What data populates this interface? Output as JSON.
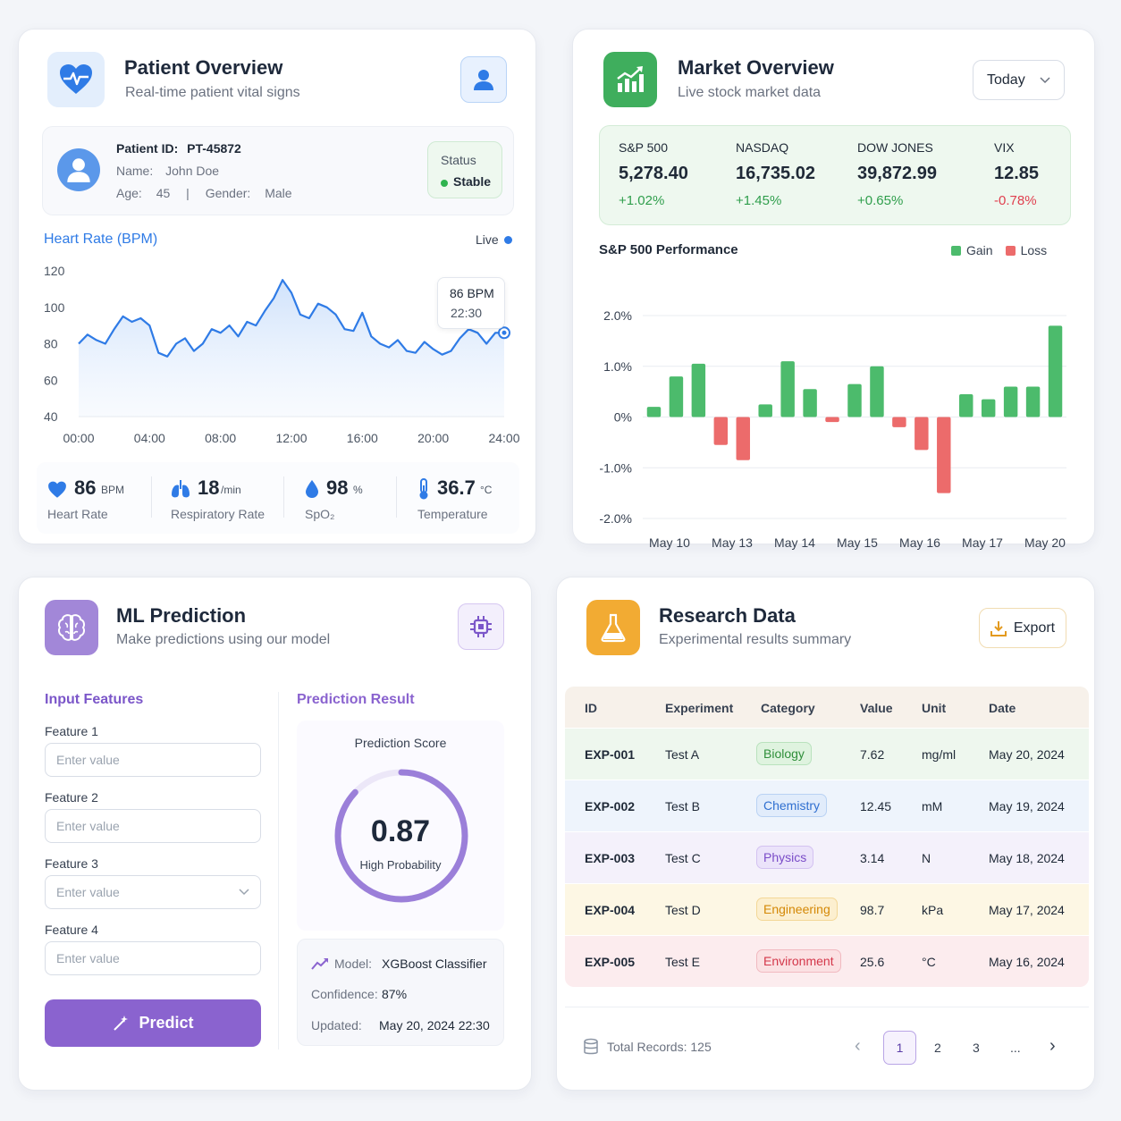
{
  "patient": {
    "title": "Patient Overview",
    "subtitle": "Real-time patient vital signs",
    "id_label": "Patient ID:",
    "id_value": "PT-45872",
    "name_label": "Name:",
    "name_value": "John Doe",
    "age_label": "Age:",
    "age_value": "45",
    "separator": "|",
    "gender_label": "Gender:",
    "gender_value": "Male",
    "status_label": "Status",
    "status_value": "Stable",
    "chart_title": "Heart Rate (BPM)",
    "live_label": "Live",
    "tooltip_value": "86 BPM",
    "tooltip_time": "22:30",
    "vitals": [
      {
        "value": "86",
        "unit": "BPM",
        "label": "Heart Rate",
        "icon": "heart-icon"
      },
      {
        "value": "18",
        "unit": "/min",
        "label": "Respiratory Rate",
        "icon": "lungs-icon"
      },
      {
        "value": "98",
        "unit": "%",
        "label": "SpO₂",
        "icon": "drop-icon"
      },
      {
        "value": "36.7",
        "unit": "°C",
        "label": "Temperature",
        "icon": "thermometer-icon"
      }
    ]
  },
  "market": {
    "title": "Market Overview",
    "subtitle": "Live stock market data",
    "period": "Today",
    "indices": [
      {
        "name": "S&P 500",
        "value": "5,278.40",
        "change": "+1.02%",
        "up": true
      },
      {
        "name": "NASDAQ",
        "value": "16,735.02",
        "change": "+1.45%",
        "up": true
      },
      {
        "name": "DOW JONES",
        "value": "39,872.99",
        "change": "+0.65%",
        "up": true
      },
      {
        "name": "VIX",
        "value": "12.85",
        "change": "-0.78%",
        "up": false
      }
    ],
    "chart_title": "S&P 500 Performance",
    "legend_gain": "Gain",
    "legend_loss": "Loss",
    "colors": {
      "gain": "#4cbb6c",
      "loss": "#ec6b6b"
    }
  },
  "ml": {
    "title": "ML Prediction",
    "subtitle": "Make predictions using our model",
    "input_heading": "Input Features",
    "result_heading": "Prediction Result",
    "features": [
      {
        "label": "Feature 1",
        "placeholder": "Enter value",
        "dropdown": false
      },
      {
        "label": "Feature 2",
        "placeholder": "Enter value",
        "dropdown": false
      },
      {
        "label": "Feature 3",
        "placeholder": "Enter value",
        "dropdown": true
      },
      {
        "label": "Feature 4",
        "placeholder": "Enter value",
        "dropdown": false
      }
    ],
    "predict_label": "Predict",
    "score_label": "Prediction Score",
    "score_value": "0.87",
    "score": 0.87,
    "probability_label": "High Probability",
    "model_label": "Model:",
    "model_value": "XGBoost Classifier",
    "confidence_label": "Confidence:",
    "confidence_value": "87%",
    "updated_label": "Updated:",
    "updated_value": "May 20, 2024 22:30"
  },
  "research": {
    "title": "Research Data",
    "subtitle": "Experimental results summary",
    "export_label": "Export",
    "columns": [
      "ID",
      "Experiment",
      "Category",
      "Value",
      "Unit",
      "Date"
    ],
    "rows": [
      {
        "id": "EXP-001",
        "experiment": "Test A",
        "category": "Biology",
        "value": "7.62",
        "unit": "mg/ml",
        "date": "May 20, 2024",
        "bg": "#eef7ee",
        "badge_bg": "#dff3df",
        "badge_fg": "#2f8f3a",
        "badge_border": "#b9e2bd"
      },
      {
        "id": "EXP-002",
        "experiment": "Test B",
        "category": "Chemistry",
        "value": "12.45",
        "unit": "mM",
        "date": "May 19, 2024",
        "bg": "#eef4fc",
        "badge_bg": "#e1ecfb",
        "badge_fg": "#2f6fd0",
        "badge_border": "#b9d2f3"
      },
      {
        "id": "EXP-003",
        "experiment": "Test C",
        "category": "Physics",
        "value": "3.14",
        "unit": "N",
        "date": "May 18, 2024",
        "bg": "#f4f1fb",
        "badge_bg": "#ebe3fa",
        "badge_fg": "#7a4cc8",
        "badge_border": "#d3c2f1"
      },
      {
        "id": "EXP-004",
        "experiment": "Test D",
        "category": "Engineering",
        "value": "98.7",
        "unit": "kPa",
        "date": "May 17, 2024",
        "bg": "#fdf7e4",
        "badge_bg": "#fcefcf",
        "badge_fg": "#d48806",
        "badge_border": "#f3d796"
      },
      {
        "id": "EXP-005",
        "experiment": "Test E",
        "category": "Environment",
        "value": "25.6",
        "unit": "°C",
        "date": "May 16, 2024",
        "bg": "#fcecee",
        "badge_bg": "#fbe1e3",
        "badge_fg": "#d4374a",
        "badge_border": "#f1b9c0"
      }
    ],
    "total_label": "Total Records: 125",
    "pages": [
      "1",
      "2",
      "3",
      "..."
    ],
    "current_page": "1",
    "prev_icon": "‹",
    "next_icon": "›"
  },
  "chart_data": [
    {
      "type": "line",
      "title": "Heart Rate (BPM)",
      "x_ticks": [
        "00:00",
        "04:00",
        "08:00",
        "12:00",
        "16:00",
        "20:00",
        "24:00"
      ],
      "ylim": [
        40,
        120
      ],
      "y_ticks": [
        "120",
        "100",
        "80",
        "60",
        "40"
      ],
      "series": [
        {
          "x": [
            0,
            0.5,
            1,
            1.5,
            2,
            2.5,
            3,
            3.5,
            4,
            4.5,
            5,
            5.5,
            6,
            6.5,
            7,
            7.5,
            8,
            8.5,
            9,
            9.5,
            10,
            10.5,
            11,
            11.5,
            12,
            12.5,
            13,
            13.5,
            14,
            14.5,
            15,
            15.5,
            16,
            16.5,
            17,
            17.5,
            18,
            18.5,
            19,
            19.5,
            20,
            20.5,
            21,
            21.5,
            22,
            22.5,
            23,
            23.5,
            24
          ],
          "y": [
            80,
            85,
            82,
            80,
            88,
            95,
            92,
            94,
            90,
            75,
            73,
            80,
            83,
            76,
            80,
            88,
            86,
            90,
            84,
            92,
            90,
            98,
            105,
            115,
            108,
            96,
            94,
            102,
            100,
            96,
            88,
            87,
            97,
            84,
            80,
            78,
            82,
            76,
            75,
            81,
            77,
            74,
            76,
            83,
            88,
            86,
            80,
            86,
            86
          ]
        }
      ],
      "annotation": "86 BPM 22:30"
    },
    {
      "type": "bar",
      "title": "S&P 500 Performance",
      "x_ticks": [
        "May 10",
        "May 13",
        "May 14",
        "May 15",
        "May 16",
        "May 17",
        "May 20"
      ],
      "ylim": [
        -2.0,
        2.0
      ],
      "y_ticks": [
        "2.0%",
        "1.0%",
        "0%",
        "-1.0%",
        "-2.0%"
      ],
      "series": [
        {
          "name": "S&P 500",
          "values": [
            0.2,
            0.8,
            1.05,
            -0.55,
            -0.85,
            0.25,
            1.1,
            0.55,
            -0.1,
            0.65,
            1.0,
            -0.2,
            -0.65,
            -1.5,
            0.45,
            0.35,
            0.6,
            0.6,
            1.8
          ]
        }
      ],
      "legend": [
        "Gain",
        "Loss"
      ],
      "grid": true
    }
  ]
}
